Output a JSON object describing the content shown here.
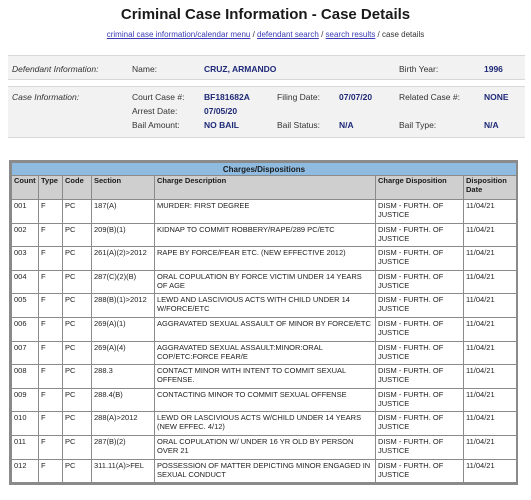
{
  "page": {
    "title": "Criminal Case Information - Case Details",
    "breadcrumb": {
      "link1": "criminal case information/calendar menu",
      "link2": "defendant search",
      "link3": "search results",
      "current": "case details",
      "separator": " / "
    }
  },
  "defendant": {
    "section_label": "Defendant Information:",
    "name_label": "Name:",
    "name": "CRUZ, ARMANDO",
    "birth_year_label": "Birth Year:",
    "birth_year": "1996"
  },
  "case_info": {
    "section_label": "Case Information:",
    "court_case_label": "Court Case #:",
    "court_case": "BF181682A",
    "filing_date_label": "Filing Date:",
    "filing_date": "07/07/20",
    "related_case_label": "Related Case #:",
    "related_case": "NONE",
    "arrest_date_label": "Arrest Date:",
    "arrest_date": "07/05/20",
    "bail_amount_label": "Bail Amount:",
    "bail_amount": "NO BAIL",
    "bail_status_label": "Bail Status:",
    "bail_status": "N/A",
    "bail_type_label": "Bail Type:",
    "bail_type": "N/A"
  },
  "charges": {
    "title": "Charges/Dispositions",
    "headers": {
      "count": "Count",
      "type": "Type",
      "code": "Code",
      "section": "Section",
      "description": "Charge Description",
      "disposition": "Charge Disposition",
      "disposition_date": "Disposition Date"
    },
    "rows": [
      {
        "count": "001",
        "type": "F",
        "code": "PC",
        "section": "187(A)",
        "description": "MURDER: FIRST DEGREE",
        "disposition": "DISM - FURTH. OF JUSTICE",
        "date": "11/04/21"
      },
      {
        "count": "002",
        "type": "F",
        "code": "PC",
        "section": "209(B)(1)",
        "description": "KIDNAP TO COMMIT ROBBERY/RAPE/289 PC/ETC",
        "disposition": "DISM - FURTH. OF JUSTICE",
        "date": "11/04/21"
      },
      {
        "count": "003",
        "type": "F",
        "code": "PC",
        "section": "261(A)(2)>2012",
        "description": "RAPE BY FORCE/FEAR ETC. (NEW EFFECTIVE 2012)",
        "disposition": "DISM - FURTH. OF JUSTICE",
        "date": "11/04/21"
      },
      {
        "count": "004",
        "type": "F",
        "code": "PC",
        "section": "287(C)(2)(B)",
        "description": "ORAL COPULATION BY FORCE VICTIM UNDER 14 YEARS OF AGE",
        "disposition": "DISM - FURTH. OF JUSTICE",
        "date": "11/04/21"
      },
      {
        "count": "005",
        "type": "F",
        "code": "PC",
        "section": "288(B)(1)>2012",
        "description": "LEWD AND LASCIVIOUS ACTS WITH CHILD UNDER 14 W/FORCE/ETC",
        "disposition": "DISM - FURTH. OF JUSTICE",
        "date": "11/04/21"
      },
      {
        "count": "006",
        "type": "F",
        "code": "PC",
        "section": "269(A)(1)",
        "description": "AGGRAVATED SEXUAL ASSAULT OF MINOR BY FORCE/ETC",
        "disposition": "DISM - FURTH. OF JUSTICE",
        "date": "11/04/21"
      },
      {
        "count": "007",
        "type": "F",
        "code": "PC",
        "section": "269(A)(4)",
        "description": "AGGRAVATED SEXUAL ASSAULT:MINOR:ORAL COP/ETC:FORCE FEAR/E",
        "disposition": "DISM - FURTH. OF JUSTICE",
        "date": "11/04/21"
      },
      {
        "count": "008",
        "type": "F",
        "code": "PC",
        "section": "288.3",
        "description": "CONTACT MINOR WITH INTENT TO COMMIT SEXUAL OFFENSE.",
        "disposition": "DISM - FURTH. OF JUSTICE",
        "date": "11/04/21"
      },
      {
        "count": "009",
        "type": "F",
        "code": "PC",
        "section": "288.4(B)",
        "description": "CONTACTING MINOR TO COMMIT SEXUAL OFFENSE",
        "disposition": "DISM - FURTH. OF JUSTICE",
        "date": "11/04/21"
      },
      {
        "count": "010",
        "type": "F",
        "code": "PC",
        "section": "288(A)>2012",
        "description": "LEWD OR LASCIVIOUS ACTS W/CHILD UNDER 14 YEARS (NEW EFFEC. 4/12)",
        "disposition": "DISM - FURTH. OF JUSTICE",
        "date": "11/04/21"
      },
      {
        "count": "011",
        "type": "F",
        "code": "PC",
        "section": "287(B)(2)",
        "description": "ORAL COPULATION W/ UNDER 16 YR OLD BY PERSON OVER 21",
        "disposition": "DISM - FURTH. OF JUSTICE",
        "date": "11/04/21"
      },
      {
        "count": "012",
        "type": "F",
        "code": "PC",
        "section": "311.11(A)>FEL",
        "description": "POSSESSION OF MATTER DEPICTING MINOR ENGAGED IN SEXUAL CONDUCT",
        "disposition": "DISM - FURTH. OF JUSTICE",
        "date": "11/04/21"
      }
    ]
  }
}
